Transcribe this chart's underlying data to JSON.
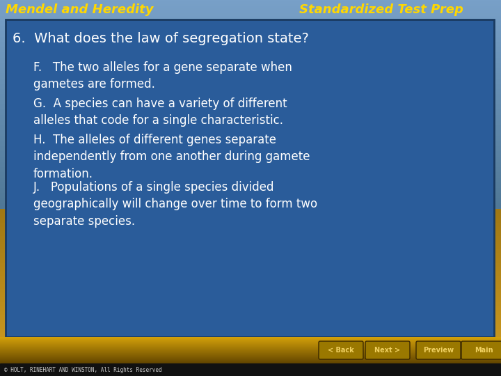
{
  "header_left": "Mendel and Heredity",
  "header_right": "Standardized Test Prep",
  "header_color": "#FFD700",
  "question": "6.  What does the law of segregation state?",
  "answers": [
    "F.   The two alleles for a gene separate when\ngametes are formed.",
    "G.  A species can have a variety of different\nalleles that code for a single characteristic.",
    "H.  The alleles of different genes separate\nindependently from one another during gamete\nformation.",
    "J.   Populations of a single species divided\ngeographically will change over time to form two\nseparate species."
  ],
  "question_color": "#FFFFFF",
  "answer_color": "#FFFFFF",
  "box_bg_color": "#2A5C9A",
  "box_border_color": "#1A3A60",
  "footer_text": "© HOLT, RINEHART AND WINSTON, All Rights Reserved",
  "footer_bg": "#111111",
  "footer_text_color": "#CCCCCC",
  "nav_bg_top": "#C8950A",
  "nav_bg_bottom": "#8B6500",
  "sky_top": "#7AADCC",
  "sky_mid": "#5A8FAA",
  "sky_bottom": "#6A8A7A",
  "desert_color": "#C8A030",
  "nav_button_bg": "#A07800",
  "nav_button_border": "#5A4000",
  "nav_buttons": [
    "< Back",
    "Next >",
    "Preview",
    "Main"
  ]
}
